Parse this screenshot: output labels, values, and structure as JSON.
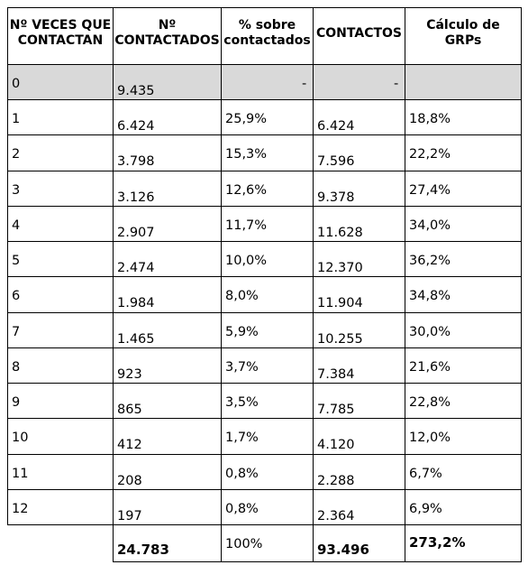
{
  "headers": {
    "veces": [
      "Nº VECES QUE",
      "CONTACTAN"
    ],
    "contactados": [
      "Nº",
      "CONTACTADOS"
    ],
    "pct": [
      "% sobre",
      "contactados"
    ],
    "contactos": [
      "CONTACTOS"
    ],
    "grps": [
      "Cálculo de",
      "GRPs"
    ]
  },
  "rows": [
    {
      "veces": "0",
      "contactados": "9.435",
      "pct": "-",
      "contactos": "-",
      "grps": ""
    },
    {
      "veces": "1",
      "contactados": "6.424",
      "pct": "25,9%",
      "contactos": "6.424",
      "grps": "18,8%"
    },
    {
      "veces": "2",
      "contactados": "3.798",
      "pct": "15,3%",
      "contactos": "7.596",
      "grps": "22,2%"
    },
    {
      "veces": "3",
      "contactados": "3.126",
      "pct": "12,6%",
      "contactos": "9.378",
      "grps": "27,4%"
    },
    {
      "veces": "4",
      "contactados": "2.907",
      "pct": "11,7%",
      "contactos": "11.628",
      "grps": "34,0%"
    },
    {
      "veces": "5",
      "contactados": "2.474",
      "pct": "10,0%",
      "contactos": "12.370",
      "grps": "36,2%"
    },
    {
      "veces": "6",
      "contactados": "1.984",
      "pct": "8,0%",
      "contactos": "11.904",
      "grps": "34,8%"
    },
    {
      "veces": "7",
      "contactados": "1.465",
      "pct": "5,9%",
      "contactos": "10.255",
      "grps": "30,0%"
    },
    {
      "veces": "8",
      "contactados": "923",
      "pct": "3,7%",
      "contactos": "7.384",
      "grps": "21,6%"
    },
    {
      "veces": "9",
      "contactados": "865",
      "pct": "3,5%",
      "contactos": "7.785",
      "grps": "22,8%"
    },
    {
      "veces": "10",
      "contactados": "412",
      "pct": "1,7%",
      "contactos": "4.120",
      "grps": "12,0%"
    },
    {
      "veces": "11",
      "contactados": "208",
      "pct": "0,8%",
      "contactos": "2.288",
      "grps": "6,7%"
    },
    {
      "veces": "12",
      "contactados": "197",
      "pct": "0,8%",
      "contactos": "2.364",
      "grps": "6,9%"
    }
  ],
  "totals": {
    "contactados": "24.783",
    "pct": "100%",
    "contactos": "93.496",
    "grps": "273,2%"
  },
  "colors": {
    "shaded_row": "#d9d9d9",
    "border": "#000000"
  }
}
